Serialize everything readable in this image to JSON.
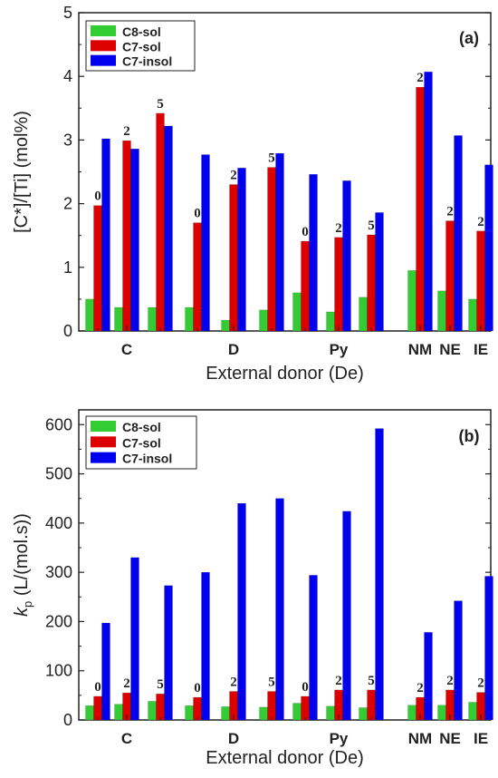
{
  "chart_data": [
    {
      "type": "bar",
      "panel_label": "(a)",
      "xlabel": "External donor (De)",
      "ylabel": "[C*]/[Ti] (mol%)",
      "ylim": [
        0,
        5
      ],
      "yticks": [
        "0",
        "1",
        "2",
        "3",
        "4",
        "5"
      ],
      "categories": [
        "C",
        "D",
        "Py",
        "NM",
        "NE",
        "IE"
      ],
      "legend_position": "top-left",
      "series": [
        {
          "name": "C8-sol",
          "color": "#33cc33"
        },
        {
          "name": "C7-sol",
          "color": "#dd0000"
        },
        {
          "name": "C7-insol",
          "color": "#0000ee"
        }
      ],
      "groups": [
        {
          "category": "C",
          "annotation": "0",
          "values": [
            0.5,
            1.97,
            3.02
          ]
        },
        {
          "category": "C",
          "annotation": "2",
          "values": [
            0.37,
            2.99,
            2.86
          ]
        },
        {
          "category": "C",
          "annotation": "5",
          "values": [
            0.37,
            3.42,
            3.22
          ]
        },
        {
          "category": "D",
          "annotation": "0",
          "values": [
            0.37,
            1.7,
            2.77
          ]
        },
        {
          "category": "D",
          "annotation": "2",
          "values": [
            0.17,
            2.3,
            2.56
          ]
        },
        {
          "category": "D",
          "annotation": "5",
          "values": [
            0.33,
            2.57,
            2.79
          ]
        },
        {
          "category": "Py",
          "annotation": "0",
          "values": [
            0.6,
            1.41,
            2.46
          ]
        },
        {
          "category": "Py",
          "annotation": "2",
          "values": [
            0.3,
            1.47,
            2.36
          ]
        },
        {
          "category": "Py",
          "annotation": "5",
          "values": [
            0.53,
            1.51,
            1.86
          ]
        },
        {
          "category": "NM",
          "annotation": "2",
          "values": [
            0.95,
            3.83,
            4.07
          ]
        },
        {
          "category": "NE",
          "annotation": "2",
          "values": [
            0.63,
            1.73,
            3.07
          ]
        },
        {
          "category": "IE",
          "annotation": "2",
          "values": [
            0.5,
            1.57,
            2.61
          ]
        }
      ]
    },
    {
      "type": "bar",
      "panel_label": "(b)",
      "xlabel": "External donor (De)",
      "ylabel": "k_p (L/(mol.s))",
      "ylabel_main": "k",
      "ylabel_sub": "p",
      "ylabel_rest": " (L/(mol.s))",
      "ylim": [
        0,
        630
      ],
      "yticks": [
        "0",
        "100",
        "200",
        "300",
        "400",
        "500",
        "600"
      ],
      "categories": [
        "C",
        "D",
        "Py",
        "NM",
        "NE",
        "IE"
      ],
      "legend_position": "top-left",
      "series": [
        {
          "name": "C8-sol",
          "color": "#33cc33"
        },
        {
          "name": "C7-sol",
          "color": "#dd0000"
        },
        {
          "name": "C7-insol",
          "color": "#0000ee"
        }
      ],
      "groups": [
        {
          "category": "C",
          "annotation": "0",
          "values": [
            29,
            48,
            197
          ]
        },
        {
          "category": "C",
          "annotation": "2",
          "values": [
            32,
            55,
            330
          ]
        },
        {
          "category": "C",
          "annotation": "5",
          "values": [
            38,
            53,
            273
          ]
        },
        {
          "category": "D",
          "annotation": "0",
          "values": [
            29,
            46,
            300
          ]
        },
        {
          "category": "D",
          "annotation": "2",
          "values": [
            27,
            58,
            440
          ]
        },
        {
          "category": "D",
          "annotation": "5",
          "values": [
            26,
            58,
            450
          ]
        },
        {
          "category": "Py",
          "annotation": "0",
          "values": [
            34,
            48,
            294
          ]
        },
        {
          "category": "Py",
          "annotation": "2",
          "values": [
            28,
            61,
            424
          ]
        },
        {
          "category": "Py",
          "annotation": "5",
          "values": [
            25,
            61,
            592
          ]
        },
        {
          "category": "NM",
          "annotation": "2",
          "values": [
            30,
            46,
            178
          ]
        },
        {
          "category": "NE",
          "annotation": "2",
          "values": [
            30,
            61,
            242
          ]
        },
        {
          "category": "IE",
          "annotation": "2",
          "values": [
            36,
            56,
            292
          ]
        }
      ]
    }
  ]
}
